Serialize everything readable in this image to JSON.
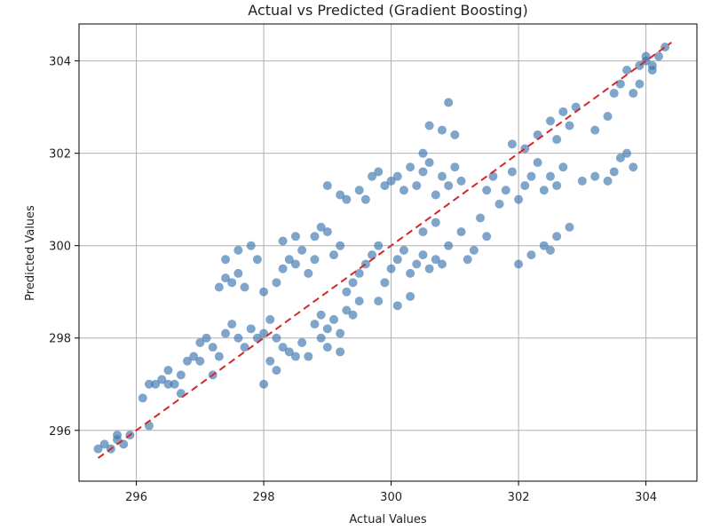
{
  "chart_data": {
    "type": "scatter",
    "title": "Actual vs Predicted (Gradient Boosting)",
    "xlabel": "Actual Values",
    "ylabel": "Predicted Values",
    "xlim": [
      295.1,
      304.8
    ],
    "ylim": [
      294.9,
      304.8
    ],
    "xticks": [
      296,
      298,
      300,
      302,
      304
    ],
    "yticks": [
      296,
      298,
      300,
      302,
      304
    ],
    "grid": true,
    "colors": {
      "points": "#3b75af",
      "reference_line": "#d62728",
      "grid": "#b0b0b0"
    },
    "reference_line": {
      "style": "dashed",
      "x": [
        295.4,
        304.4
      ],
      "y": [
        295.4,
        304.4
      ]
    },
    "series": [
      {
        "values": [
          [
            295.4,
            295.6
          ],
          [
            295.5,
            295.7
          ],
          [
            295.6,
            295.6
          ],
          [
            295.7,
            295.8
          ],
          [
            295.8,
            295.7
          ],
          [
            295.9,
            295.9
          ],
          [
            295.7,
            295.9
          ],
          [
            296.1,
            296.7
          ],
          [
            296.2,
            297.0
          ],
          [
            296.3,
            297.0
          ],
          [
            296.4,
            297.1
          ],
          [
            296.5,
            297.3
          ],
          [
            296.6,
            297.0
          ],
          [
            296.7,
            297.2
          ],
          [
            296.8,
            297.5
          ],
          [
            296.5,
            297.0
          ],
          [
            296.2,
            296.1
          ],
          [
            296.7,
            296.8
          ],
          [
            296.9,
            297.6
          ],
          [
            297.0,
            297.9
          ],
          [
            297.1,
            298.0
          ],
          [
            297.2,
            297.8
          ],
          [
            297.3,
            297.6
          ],
          [
            297.4,
            298.1
          ],
          [
            297.5,
            298.3
          ],
          [
            297.6,
            298.0
          ],
          [
            297.7,
            297.8
          ],
          [
            297.8,
            298.2
          ],
          [
            297.9,
            298.0
          ],
          [
            297.0,
            297.5
          ],
          [
            297.2,
            297.2
          ],
          [
            297.3,
            299.1
          ],
          [
            297.4,
            299.3
          ],
          [
            297.5,
            299.2
          ],
          [
            297.6,
            299.4
          ],
          [
            297.7,
            299.1
          ],
          [
            297.4,
            299.7
          ],
          [
            297.6,
            299.9
          ],
          [
            297.8,
            300.0
          ],
          [
            297.9,
            299.7
          ],
          [
            298.0,
            298.1
          ],
          [
            298.1,
            298.4
          ],
          [
            298.2,
            298.0
          ],
          [
            298.3,
            297.8
          ],
          [
            298.4,
            297.7
          ],
          [
            298.5,
            297.6
          ],
          [
            298.6,
            297.9
          ],
          [
            298.7,
            297.6
          ],
          [
            298.0,
            297.0
          ],
          [
            298.2,
            297.3
          ],
          [
            298.1,
            297.5
          ],
          [
            298.0,
            299.0
          ],
          [
            298.2,
            299.2
          ],
          [
            298.3,
            299.5
          ],
          [
            298.4,
            299.7
          ],
          [
            298.5,
            299.6
          ],
          [
            298.6,
            299.9
          ],
          [
            298.3,
            300.1
          ],
          [
            298.5,
            300.2
          ],
          [
            298.7,
            299.4
          ],
          [
            298.8,
            299.7
          ],
          [
            298.8,
            298.3
          ],
          [
            298.9,
            298.0
          ],
          [
            299.0,
            298.2
          ],
          [
            299.1,
            298.4
          ],
          [
            299.2,
            298.1
          ],
          [
            299.3,
            298.6
          ],
          [
            299.0,
            297.8
          ],
          [
            299.2,
            297.7
          ],
          [
            299.4,
            298.5
          ],
          [
            299.5,
            298.8
          ],
          [
            298.9,
            298.5
          ],
          [
            298.8,
            300.2
          ],
          [
            298.9,
            300.4
          ],
          [
            299.0,
            300.3
          ],
          [
            299.1,
            299.8
          ],
          [
            299.2,
            300.0
          ],
          [
            299.0,
            301.3
          ],
          [
            299.2,
            301.1
          ],
          [
            299.3,
            301.0
          ],
          [
            299.5,
            301.2
          ],
          [
            299.6,
            301.0
          ],
          [
            299.7,
            301.5
          ],
          [
            299.8,
            301.6
          ],
          [
            299.9,
            301.3
          ],
          [
            299.3,
            299.0
          ],
          [
            299.4,
            299.2
          ],
          [
            299.5,
            299.4
          ],
          [
            299.6,
            299.6
          ],
          [
            299.7,
            299.8
          ],
          [
            299.8,
            300.0
          ],
          [
            299.9,
            299.2
          ],
          [
            300.0,
            299.5
          ],
          [
            300.1,
            299.7
          ],
          [
            300.2,
            299.9
          ],
          [
            300.3,
            299.4
          ],
          [
            300.4,
            299.6
          ],
          [
            300.5,
            299.8
          ],
          [
            300.6,
            299.5
          ],
          [
            300.7,
            299.7
          ],
          [
            300.8,
            299.6
          ],
          [
            300.3,
            298.9
          ],
          [
            300.1,
            298.7
          ],
          [
            299.8,
            298.8
          ],
          [
            300.0,
            301.4
          ],
          [
            300.1,
            301.5
          ],
          [
            300.2,
            301.2
          ],
          [
            300.3,
            301.7
          ],
          [
            300.4,
            301.3
          ],
          [
            300.5,
            301.6
          ],
          [
            300.6,
            301.8
          ],
          [
            300.7,
            301.1
          ],
          [
            300.8,
            301.5
          ],
          [
            300.9,
            301.3
          ],
          [
            301.0,
            301.7
          ],
          [
            301.1,
            301.4
          ],
          [
            300.5,
            302.0
          ],
          [
            300.6,
            302.6
          ],
          [
            300.8,
            302.5
          ],
          [
            300.9,
            303.1
          ],
          [
            301.0,
            302.4
          ],
          [
            300.5,
            300.3
          ],
          [
            300.7,
            300.5
          ],
          [
            300.9,
            300.0
          ],
          [
            301.1,
            300.3
          ],
          [
            301.3,
            299.9
          ],
          [
            301.5,
            300.2
          ],
          [
            301.2,
            299.7
          ],
          [
            301.4,
            300.6
          ],
          [
            301.5,
            301.2
          ],
          [
            301.6,
            301.5
          ],
          [
            301.7,
            300.9
          ],
          [
            301.8,
            301.2
          ],
          [
            301.9,
            301.6
          ],
          [
            302.0,
            301.0
          ],
          [
            302.1,
            301.3
          ],
          [
            302.2,
            301.5
          ],
          [
            302.3,
            301.8
          ],
          [
            302.4,
            301.2
          ],
          [
            302.5,
            301.5
          ],
          [
            302.6,
            301.3
          ],
          [
            302.7,
            301.7
          ],
          [
            301.9,
            302.2
          ],
          [
            302.1,
            302.1
          ],
          [
            302.3,
            302.4
          ],
          [
            302.5,
            302.7
          ],
          [
            302.7,
            302.9
          ],
          [
            302.9,
            303.0
          ],
          [
            302.6,
            302.3
          ],
          [
            302.8,
            302.6
          ],
          [
            302.0,
            299.6
          ],
          [
            302.2,
            299.8
          ],
          [
            302.4,
            300.0
          ],
          [
            302.6,
            300.2
          ],
          [
            302.8,
            300.4
          ],
          [
            302.5,
            299.9
          ],
          [
            303.0,
            301.4
          ],
          [
            303.2,
            301.5
          ],
          [
            303.4,
            301.4
          ],
          [
            303.5,
            301.6
          ],
          [
            303.6,
            301.9
          ],
          [
            303.7,
            302.0
          ],
          [
            303.8,
            301.7
          ],
          [
            303.2,
            302.5
          ],
          [
            303.4,
            302.8
          ],
          [
            303.5,
            303.3
          ],
          [
            303.6,
            303.5
          ],
          [
            303.7,
            303.8
          ],
          [
            303.8,
            303.3
          ],
          [
            303.9,
            303.9
          ],
          [
            304.0,
            304.0
          ],
          [
            304.1,
            303.9
          ],
          [
            304.2,
            304.1
          ],
          [
            304.3,
            304.3
          ],
          [
            304.1,
            303.8
          ],
          [
            303.9,
            303.5
          ],
          [
            304.0,
            304.1
          ]
        ]
      }
    ]
  }
}
